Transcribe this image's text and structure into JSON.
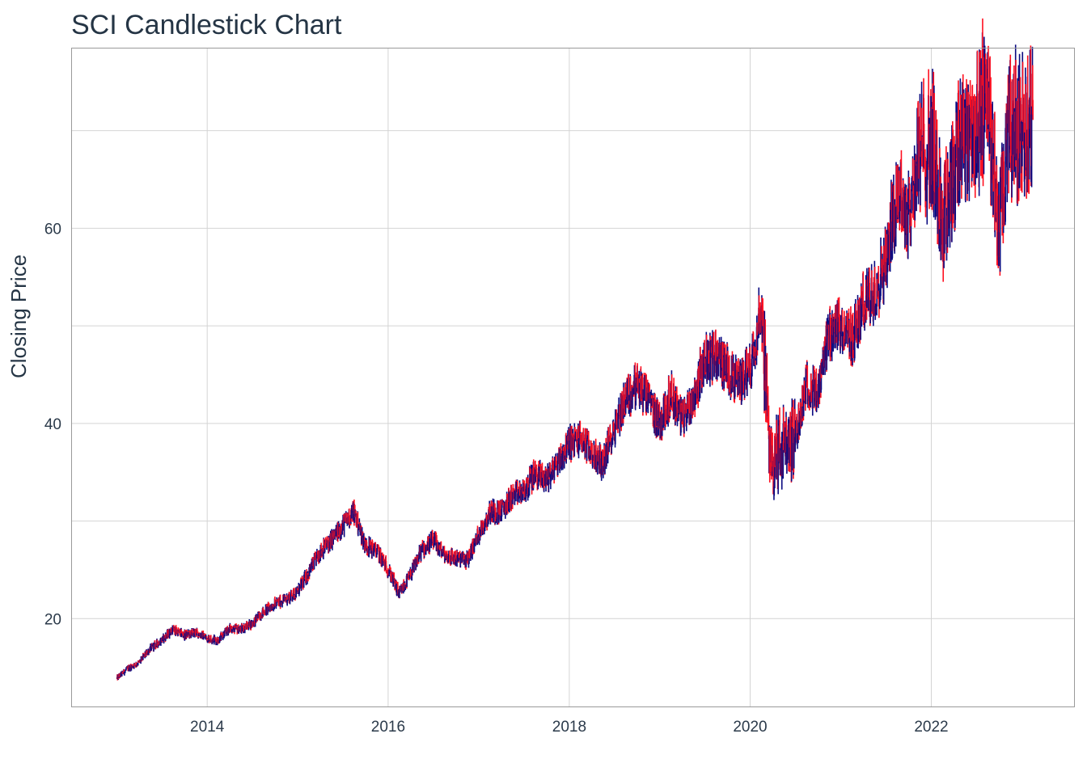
{
  "chart_data": {
    "type": "candlestick",
    "title": "SCI Candlestick Chart",
    "xlabel": "",
    "ylabel": "Closing Price",
    "xlim": [
      "2012-07-01",
      "2023-07-31"
    ],
    "ylim": [
      11,
      78.5
    ],
    "x_ticks": [
      "2014-01-01",
      "2016-01-01",
      "2018-01-01",
      "2020-01-01",
      "2022-01-01"
    ],
    "x_tick_labels": [
      "2014",
      "2016",
      "2018",
      "2020",
      "2022"
    ],
    "y_ticks": [
      20,
      40,
      60
    ],
    "y_minor_ticks": [
      30,
      50,
      70
    ],
    "grid": true,
    "colors": {
      "increasing": "#0a0a80",
      "decreasing": "#ff1020",
      "grid": "#d4d4d4",
      "frame": "#9a9a9a"
    },
    "series": [
      {
        "values": [
          [
            "2013-01-02",
            13.9
          ],
          [
            "2013-02-15",
            14.9
          ],
          [
            "2013-04-01",
            15.5
          ],
          [
            "2013-05-15",
            16.9
          ],
          [
            "2013-07-01",
            17.8
          ],
          [
            "2013-08-15",
            18.9
          ],
          [
            "2013-10-01",
            18.3
          ],
          [
            "2013-11-15",
            18.6
          ],
          [
            "2014-01-02",
            18.0
          ],
          [
            "2014-02-15",
            17.8
          ],
          [
            "2014-04-01",
            19.0
          ],
          [
            "2014-05-15",
            18.9
          ],
          [
            "2014-07-01",
            19.5
          ],
          [
            "2014-08-15",
            20.7
          ],
          [
            "2014-10-01",
            21.5
          ],
          [
            "2014-11-15",
            22.0
          ],
          [
            "2015-01-02",
            22.8
          ],
          [
            "2015-02-15",
            24.8
          ],
          [
            "2015-04-01",
            26.8
          ],
          [
            "2015-05-15",
            28.0
          ],
          [
            "2015-07-01",
            29.5
          ],
          [
            "2015-08-15",
            31.0
          ],
          [
            "2015-10-01",
            27.5
          ],
          [
            "2015-11-15",
            27.0
          ],
          [
            "2016-01-02",
            25.0
          ],
          [
            "2016-02-15",
            22.5
          ],
          [
            "2016-04-01",
            24.5
          ],
          [
            "2016-05-15",
            27.0
          ],
          [
            "2016-07-01",
            28.0
          ],
          [
            "2016-08-15",
            26.5
          ],
          [
            "2016-10-01",
            26.2
          ],
          [
            "2016-11-15",
            26.0
          ],
          [
            "2017-01-02",
            28.8
          ],
          [
            "2017-02-15",
            31.0
          ],
          [
            "2017-04-01",
            31.0
          ],
          [
            "2017-05-15",
            32.5
          ],
          [
            "2017-07-01",
            33.0
          ],
          [
            "2017-08-15",
            34.8
          ],
          [
            "2017-10-01",
            34.3
          ],
          [
            "2017-11-15",
            36.0
          ],
          [
            "2018-01-02",
            38.0
          ],
          [
            "2018-02-15",
            38.5
          ],
          [
            "2018-04-01",
            37.0
          ],
          [
            "2018-05-15",
            35.8
          ],
          [
            "2018-07-01",
            39.5
          ],
          [
            "2018-08-15",
            42.5
          ],
          [
            "2018-10-01",
            44.0
          ],
          [
            "2018-11-15",
            42.5
          ],
          [
            "2019-01-02",
            40.0
          ],
          [
            "2019-02-15",
            43.0
          ],
          [
            "2019-04-01",
            40.5
          ],
          [
            "2019-05-15",
            42.5
          ],
          [
            "2019-07-01",
            46.5
          ],
          [
            "2019-08-15",
            47.0
          ],
          [
            "2019-10-01",
            45.5
          ],
          [
            "2019-11-15",
            44.0
          ],
          [
            "2020-01-02",
            46.0
          ],
          [
            "2020-02-15",
            52.0
          ],
          [
            "2020-03-20",
            36.0
          ],
          [
            "2020-05-15",
            37.5
          ],
          [
            "2020-07-01",
            38.5
          ],
          [
            "2020-08-15",
            44.0
          ],
          [
            "2020-10-01",
            43.0
          ],
          [
            "2020-11-15",
            49.0
          ],
          [
            "2021-01-02",
            50.0
          ],
          [
            "2021-02-15",
            48.5
          ],
          [
            "2021-04-01",
            52.0
          ],
          [
            "2021-05-15",
            53.5
          ],
          [
            "2021-07-01",
            56.5
          ],
          [
            "2021-08-15",
            64.0
          ],
          [
            "2021-10-01",
            61.5
          ],
          [
            "2021-11-15",
            67.5
          ],
          [
            "2022-01-02",
            69.0
          ],
          [
            "2022-02-15",
            60.0
          ],
          [
            "2022-04-01",
            66.0
          ],
          [
            "2022-05-15",
            70.5
          ],
          [
            "2022-07-01",
            69.0
          ],
          [
            "2022-08-15",
            75.0
          ],
          [
            "2022-10-01",
            59.0
          ],
          [
            "2022-11-15",
            70.5
          ],
          [
            "2023-01-02",
            70.0
          ],
          [
            "2023-02-15",
            71.0
          ]
        ]
      }
    ]
  }
}
